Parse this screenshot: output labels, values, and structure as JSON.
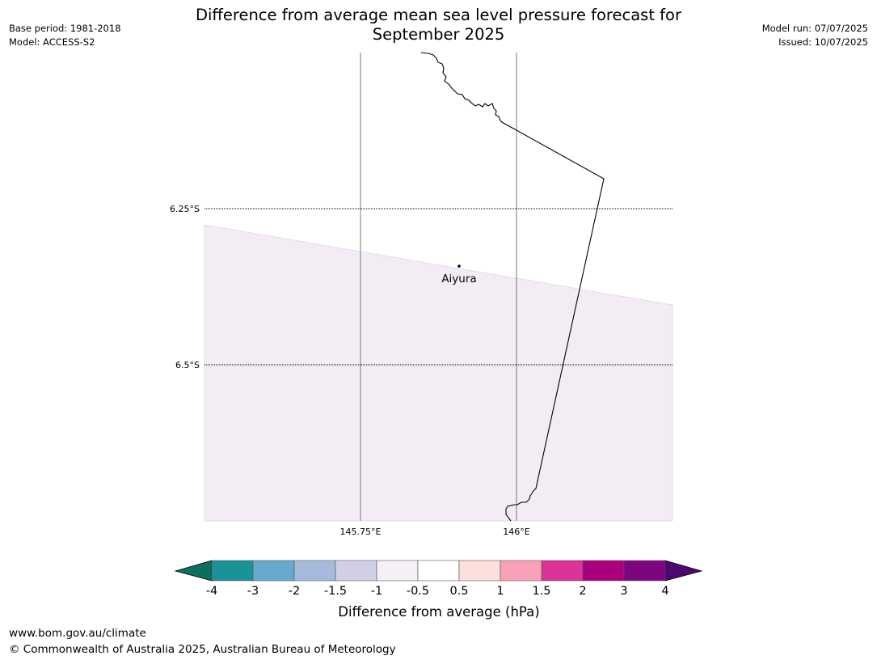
{
  "title_line1": "Difference from average mean sea level pressure forecast for",
  "title_line2": "September 2025",
  "meta": {
    "base_period": "Base period: 1981-2018",
    "model": "Model: ACCESS-S2",
    "model_run": "Model run: 07/07/2025",
    "issued": "Issued: 10/07/2025"
  },
  "map": {
    "lat_labels": [
      "6.25°S",
      "6.5°S"
    ],
    "lon_labels": [
      "145.75°E",
      "146°E"
    ],
    "place": {
      "name": "Aiyura",
      "lat": -6.34,
      "lon": 145.905
    },
    "anomaly_colors": {
      "land": "#f3ecf5"
    }
  },
  "colorbar": {
    "label": "Difference from average (hPa)",
    "ticks": [
      "-4",
      "-3",
      "-2",
      "-1.5",
      "-1",
      "-0.5",
      "0.5",
      "1",
      "1.5",
      "2",
      "3",
      "4"
    ],
    "under_color": "#0d6e5f",
    "over_color": "#4b0a6b",
    "colors": [
      "#1b9297",
      "#67a8ce",
      "#a6bbdc",
      "#d0cfe6",
      "#f7eff7",
      "#ffffff",
      "#fde0dd",
      "#f9a1b9",
      "#db3498",
      "#ab007e",
      "#7c0580"
    ]
  },
  "footer": {
    "url": "www.bom.gov.au/climate",
    "copyright": "© Commonwealth of Australia 2025, Australian Bureau of Meteorology"
  }
}
